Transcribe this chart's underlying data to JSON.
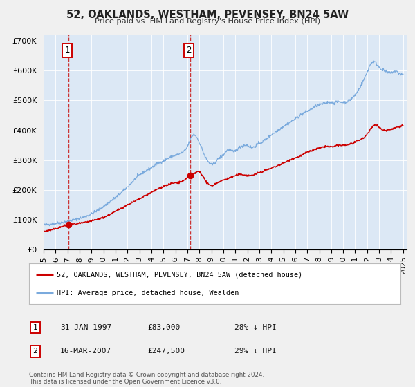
{
  "title": "52, OAKLANDS, WESTHAM, PEVENSEY, BN24 5AW",
  "subtitle": "Price paid vs. HM Land Registry's House Price Index (HPI)",
  "bg_color": "#f0f0f0",
  "plot_bg_color": "#dce8f5",
  "red_line_color": "#cc0000",
  "blue_line_color": "#7aaadd",
  "sale1_date": 1997.08,
  "sale1_price": 83000,
  "sale2_date": 2007.21,
  "sale2_price": 247500,
  "xlim": [
    1995.0,
    2025.3
  ],
  "ylim": [
    0,
    720000
  ],
  "yticks": [
    0,
    100000,
    200000,
    300000,
    400000,
    500000,
    600000,
    700000
  ],
  "ytick_labels": [
    "£0",
    "£100K",
    "£200K",
    "£300K",
    "£400K",
    "£500K",
    "£600K",
    "£700K"
  ],
  "legend_label_red": "52, OAKLANDS, WESTHAM, PEVENSEY, BN24 5AW (detached house)",
  "legend_label_blue": "HPI: Average price, detached house, Wealden",
  "footer": "Contains HM Land Registry data © Crown copyright and database right 2024.\nThis data is licensed under the Open Government Licence v3.0.",
  "xticks": [
    1995,
    1996,
    1997,
    1998,
    1999,
    2000,
    2001,
    2002,
    2003,
    2004,
    2005,
    2006,
    2007,
    2008,
    2009,
    2010,
    2011,
    2012,
    2013,
    2014,
    2015,
    2016,
    2017,
    2018,
    2019,
    2020,
    2021,
    2022,
    2023,
    2024,
    2025
  ],
  "blue_anchors_x": [
    1995.0,
    1996.0,
    1997.0,
    1998.0,
    1999.0,
    2000.0,
    2001.0,
    2002.0,
    2003.0,
    2004.0,
    2004.5,
    2005.0,
    2005.5,
    2006.0,
    2006.5,
    2007.0,
    2007.5,
    2007.8,
    2008.2,
    2008.5,
    2008.8,
    2009.0,
    2009.3,
    2009.6,
    2010.0,
    2010.4,
    2010.8,
    2011.2,
    2011.6,
    2012.0,
    2012.4,
    2012.8,
    2013.2,
    2013.6,
    2014.0,
    2014.4,
    2014.8,
    2015.2,
    2015.6,
    2016.0,
    2016.4,
    2016.8,
    2017.2,
    2017.6,
    2018.0,
    2018.4,
    2018.8,
    2019.2,
    2019.6,
    2020.0,
    2020.4,
    2020.8,
    2021.2,
    2021.6,
    2022.0,
    2022.2,
    2022.5,
    2022.8,
    2023.1,
    2023.5,
    2023.9,
    2024.3,
    2024.7,
    2025.0
  ],
  "blue_anchors_y": [
    82000,
    88000,
    95000,
    105000,
    120000,
    145000,
    175000,
    210000,
    250000,
    275000,
    288000,
    298000,
    308000,
    316000,
    324000,
    345000,
    385000,
    375000,
    340000,
    310000,
    292000,
    285000,
    292000,
    305000,
    318000,
    335000,
    328000,
    338000,
    348000,
    350000,
    342000,
    352000,
    360000,
    372000,
    385000,
    396000,
    408000,
    418000,
    428000,
    438000,
    450000,
    460000,
    468000,
    478000,
    485000,
    490000,
    494000,
    492000,
    496000,
    493000,
    498000,
    510000,
    530000,
    560000,
    595000,
    615000,
    630000,
    622000,
    608000,
    598000,
    592000,
    598000,
    590000,
    588000
  ],
  "red_anchors_x": [
    1995.0,
    1996.0,
    1997.08,
    1998.0,
    1999.0,
    2000.0,
    2001.0,
    2002.0,
    2003.0,
    2004.0,
    2005.0,
    2006.0,
    2006.8,
    2007.21,
    2007.6,
    2007.9,
    2008.2,
    2008.6,
    2009.0,
    2009.4,
    2009.8,
    2010.2,
    2010.6,
    2011.0,
    2011.4,
    2011.8,
    2012.2,
    2012.6,
    2013.0,
    2013.4,
    2013.8,
    2014.2,
    2014.6,
    2015.0,
    2015.4,
    2015.8,
    2016.2,
    2016.6,
    2017.0,
    2017.4,
    2017.8,
    2018.2,
    2018.6,
    2019.0,
    2019.4,
    2019.8,
    2020.2,
    2020.6,
    2021.0,
    2021.4,
    2021.8,
    2022.2,
    2022.6,
    2023.0,
    2023.4,
    2023.8,
    2024.2,
    2024.6,
    2025.0
  ],
  "red_anchors_y": [
    62000,
    70000,
    83000,
    88000,
    96000,
    108000,
    128000,
    150000,
    170000,
    192000,
    212000,
    224000,
    234000,
    247500,
    255000,
    262000,
    252000,
    225000,
    215000,
    222000,
    230000,
    236000,
    242000,
    248000,
    252000,
    250000,
    248000,
    252000,
    258000,
    264000,
    270000,
    276000,
    283000,
    290000,
    298000,
    305000,
    310000,
    318000,
    326000,
    332000,
    338000,
    342000,
    346000,
    344000,
    348000,
    350000,
    350000,
    354000,
    360000,
    368000,
    378000,
    398000,
    418000,
    410000,
    400000,
    402000,
    406000,
    412000,
    416000
  ]
}
